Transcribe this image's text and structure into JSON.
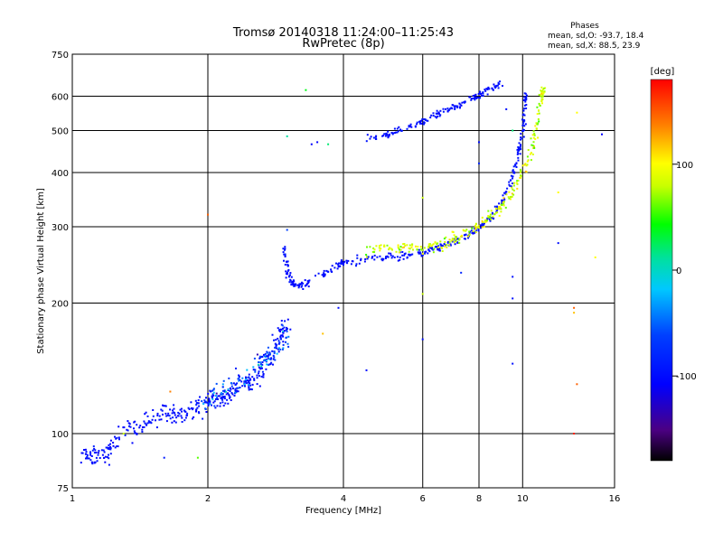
{
  "header": {
    "title_line1": "Tromsø 20140318 11:24:00–11:25:43",
    "title_line2": "RwPretec (8p)"
  },
  "phases": {
    "heading": "Phases",
    "line_o": "mean, sd,O: -93.7, 18.4",
    "line_x": "mean, sd,X:  88.5, 23.9"
  },
  "colorbar": {
    "unit_label": "[deg]",
    "range": [
      -180,
      180
    ],
    "ticks": [
      {
        "label": "100",
        "value": 100
      },
      {
        "label": "0",
        "value": 0
      },
      {
        "label": "-100",
        "value": -100
      }
    ]
  },
  "chart_data": {
    "type": "scatter",
    "title": "Tromsø 20140318 11:24:00–11:25:43",
    "subtitle": "RwPretec (8p)",
    "xlabel": "Frequency [MHz]",
    "ylabel": "Stationary phase Virtual Height [km]",
    "x_scale": "log",
    "y_scale": "log",
    "xlim": [
      1,
      16
    ],
    "ylim": [
      75,
      750
    ],
    "grid": true,
    "x_ticks": [
      {
        "label": "1",
        "value": 1
      },
      {
        "label": "2",
        "value": 2
      },
      {
        "label": "4",
        "value": 4
      },
      {
        "label": "6",
        "value": 6
      },
      {
        "label": "8",
        "value": 8
      },
      {
        "label": "10",
        "value": 10
      },
      {
        "label": "16",
        "value": 16
      }
    ],
    "y_ticks": [
      {
        "label": "75",
        "value": 75
      },
      {
        "label": "100",
        "value": 100
      },
      {
        "label": "200",
        "value": 200
      },
      {
        "label": "300",
        "value": 300
      },
      {
        "label": "400",
        "value": 400
      },
      {
        "label": "500",
        "value": 500
      },
      {
        "label": "600",
        "value": 600
      },
      {
        "label": "750",
        "value": 750
      }
    ],
    "color_encodes": "phase [deg]",
    "traces": [
      {
        "points": [
          [
            1.05,
            89
          ],
          [
            1.1,
            89
          ],
          [
            1.15,
            88
          ],
          [
            1.2,
            91
          ],
          [
            1.3,
            102
          ],
          [
            1.4,
            104
          ],
          [
            1.5,
            107
          ],
          [
            1.6,
            112
          ],
          [
            1.7,
            110
          ],
          [
            1.8,
            112
          ],
          [
            1.9,
            114
          ],
          [
            2.0,
            118
          ],
          [
            2.1,
            118
          ],
          [
            2.2,
            122
          ],
          [
            2.3,
            126
          ],
          [
            2.4,
            132
          ],
          [
            2.5,
            130
          ],
          [
            2.6,
            140
          ],
          [
            2.7,
            148
          ],
          [
            2.8,
            158
          ],
          [
            2.9,
            170
          ],
          [
            3.0,
            180
          ]
        ],
        "phase": -100,
        "sd": 12,
        "scatter": 0.05
      },
      {
        "points": [
          [
            1.95,
            115
          ],
          [
            2.1,
            125
          ],
          [
            2.3,
            130
          ],
          [
            2.5,
            140
          ],
          [
            2.7,
            150
          ],
          [
            2.9,
            160
          ],
          [
            3.0,
            168
          ]
        ],
        "phase": -60,
        "sd": 60,
        "scatter": 0.06
      },
      {
        "points": [
          [
            2.95,
            270
          ],
          [
            3.0,
            240
          ],
          [
            3.05,
            225
          ],
          [
            3.2,
            218
          ],
          [
            3.5,
            228
          ],
          [
            3.8,
            240
          ],
          [
            4.0,
            248
          ],
          [
            4.5,
            252
          ],
          [
            5.0,
            255
          ],
          [
            5.5,
            258
          ],
          [
            6.0,
            262
          ],
          [
            6.5,
            268
          ],
          [
            7.0,
            275
          ],
          [
            7.5,
            285
          ],
          [
            8.0,
            298
          ],
          [
            8.5,
            315
          ],
          [
            9.0,
            345
          ],
          [
            9.5,
            390
          ],
          [
            9.8,
            440
          ],
          [
            10.0,
            500
          ],
          [
            10.1,
            560
          ],
          [
            10.2,
            610
          ]
        ],
        "phase": -100,
        "sd": 10,
        "scatter": 0.02
      },
      {
        "points": [
          [
            4.5,
            265
          ],
          [
            5.0,
            268
          ],
          [
            5.5,
            268
          ],
          [
            6.0,
            268
          ],
          [
            6.5,
            272
          ],
          [
            7.0,
            280
          ],
          [
            7.5,
            290
          ],
          [
            8.0,
            300
          ],
          [
            8.5,
            318
          ],
          [
            9.0,
            335
          ],
          [
            9.5,
            360
          ],
          [
            10.0,
            400
          ],
          [
            10.5,
            460
          ],
          [
            10.8,
            520
          ],
          [
            11.0,
            600
          ],
          [
            11.2,
            640
          ]
        ],
        "phase": 85,
        "sd": 30,
        "scatter": 0.03
      },
      {
        "points": [
          [
            4.5,
            480
          ],
          [
            5.0,
            490
          ],
          [
            5.5,
            505
          ],
          [
            6.0,
            525
          ],
          [
            6.5,
            545
          ],
          [
            7.0,
            565
          ],
          [
            7.5,
            585
          ],
          [
            8.0,
            605
          ],
          [
            8.5,
            625
          ],
          [
            9.0,
            640
          ]
        ],
        "phase": -100,
        "sd": 10,
        "scatter": 0.02
      }
    ],
    "scattered_points": [
      {
        "x": 3.3,
        "y": 620,
        "phase": 40
      },
      {
        "x": 3.4,
        "y": 465,
        "phase": -110
      },
      {
        "x": 3.5,
        "y": 470,
        "phase": -110
      },
      {
        "x": 3.7,
        "y": 465,
        "phase": 20
      },
      {
        "x": 3.0,
        "y": 485,
        "phase": 10
      },
      {
        "x": 2.0,
        "y": 320,
        "phase": 150
      },
      {
        "x": 3.0,
        "y": 295,
        "phase": -60
      },
      {
        "x": 3.6,
        "y": 170,
        "phase": 120
      },
      {
        "x": 3.9,
        "y": 195,
        "phase": -100
      },
      {
        "x": 4.5,
        "y": 140,
        "phase": -100
      },
      {
        "x": 6.0,
        "y": 165,
        "phase": -100
      },
      {
        "x": 6.0,
        "y": 210,
        "phase": 80
      },
      {
        "x": 6.0,
        "y": 350,
        "phase": 80
      },
      {
        "x": 7.3,
        "y": 235,
        "phase": -80
      },
      {
        "x": 8.0,
        "y": 470,
        "phase": -100
      },
      {
        "x": 8.0,
        "y": 420,
        "phase": -80
      },
      {
        "x": 9.5,
        "y": 230,
        "phase": -100
      },
      {
        "x": 9.5,
        "y": 205,
        "phase": -100
      },
      {
        "x": 9.5,
        "y": 145,
        "phase": -100
      },
      {
        "x": 12.0,
        "y": 360,
        "phase": 100
      },
      {
        "x": 12.0,
        "y": 275,
        "phase": -100
      },
      {
        "x": 13.0,
        "y": 195,
        "phase": 150
      },
      {
        "x": 13.0,
        "y": 190,
        "phase": 120
      },
      {
        "x": 13.2,
        "y": 130,
        "phase": 150
      },
      {
        "x": 13.0,
        "y": 100,
        "phase": 170
      },
      {
        "x": 13.2,
        "y": 550,
        "phase": 100
      },
      {
        "x": 15.0,
        "y": 490,
        "phase": -110
      },
      {
        "x": 14.5,
        "y": 255,
        "phase": 100
      },
      {
        "x": 1.9,
        "y": 88,
        "phase": 60
      },
      {
        "x": 1.6,
        "y": 88,
        "phase": -90
      },
      {
        "x": 1.65,
        "y": 125,
        "phase": 140
      },
      {
        "x": 1.3,
        "y": 100,
        "phase": 80
      },
      {
        "x": 9.2,
        "y": 560,
        "phase": -100
      },
      {
        "x": 9.5,
        "y": 500,
        "phase": 20
      }
    ]
  }
}
